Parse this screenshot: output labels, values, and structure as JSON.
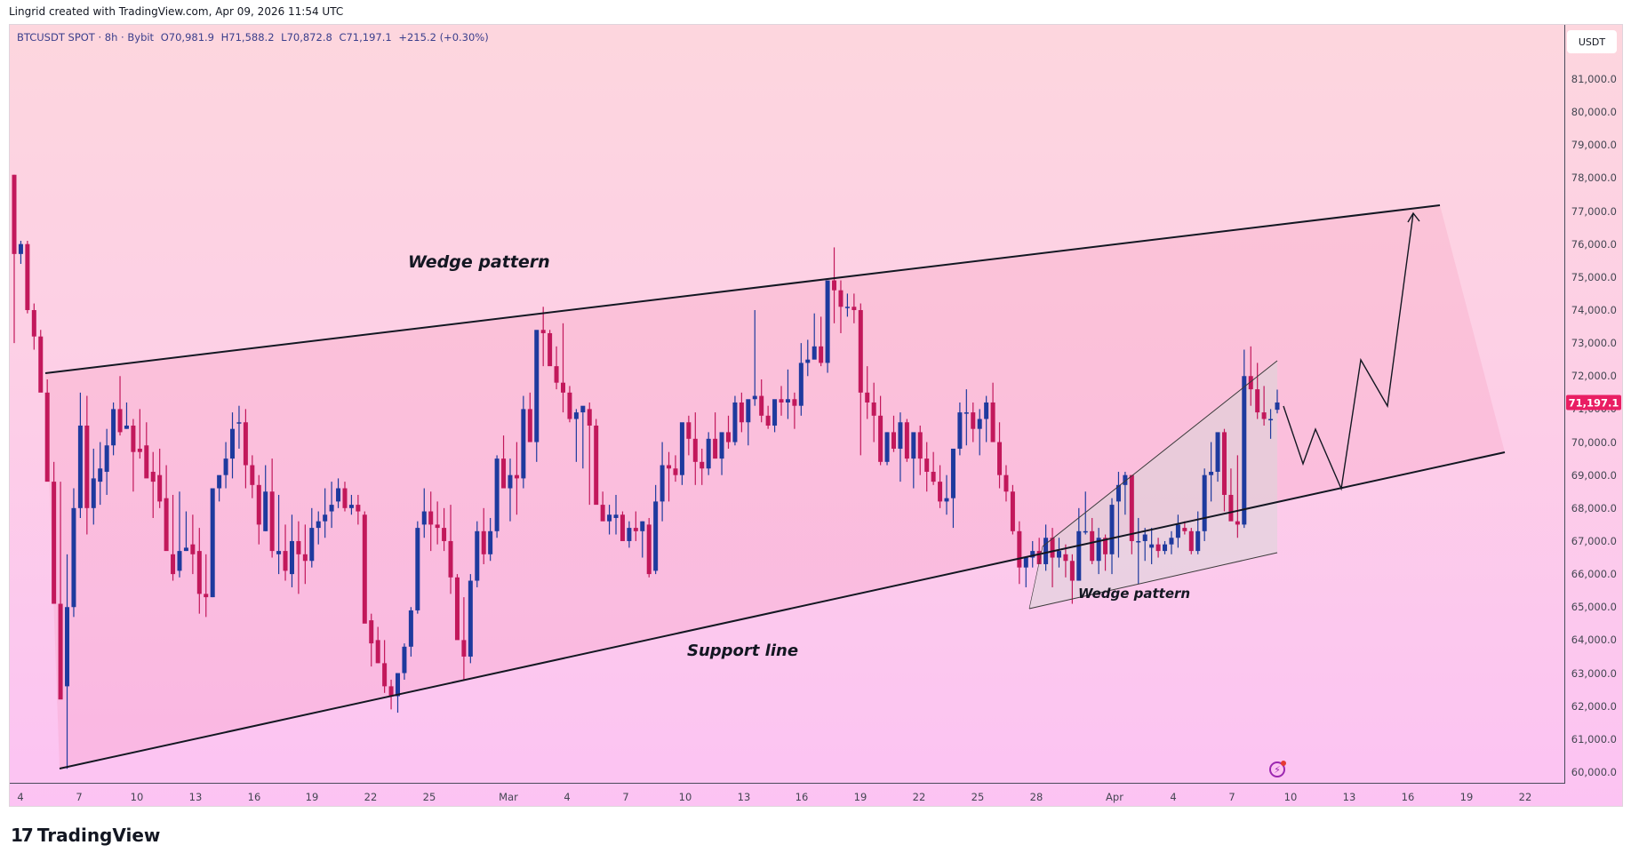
{
  "header": {
    "attribution": "Lingrid created with TradingView.com, Apr 09, 2026 11:54 UTC"
  },
  "legend": {
    "symbol": "BTCUSDT SPOT · 8h · Bybit",
    "open": "O70,981.9",
    "high": "H71,588.2",
    "low": "L70,872.8",
    "close": "C71,197.1",
    "change": "+215.2 (+0.30%)"
  },
  "price_axis": {
    "currency": "USDT",
    "labels": [
      "81,000.0",
      "80,000.0",
      "79,000.0",
      "78,000.0",
      "77,000.0",
      "76,000.0",
      "75,000.0",
      "74,000.0",
      "73,000.0",
      "72,000.0",
      "71,000.0",
      "70,000.0",
      "69,000.0",
      "68,000.0",
      "67,000.0",
      "66,000.0",
      "65,000.0",
      "64,000.0",
      "63,000.0",
      "62,000.0",
      "61,000.0",
      "60,000.0"
    ],
    "current_price": "71,197.1",
    "current_price_color": "#e91e63"
  },
  "time_axis": {
    "labels": [
      "4",
      "7",
      "10",
      "13",
      "16",
      "19",
      "22",
      "25",
      "Mar",
      "4",
      "7",
      "10",
      "13",
      "16",
      "19",
      "22",
      "25",
      "28",
      "Apr",
      "4",
      "7",
      "10",
      "13",
      "16",
      "19",
      "22"
    ]
  },
  "annotations": {
    "wedge_pattern_main": "Wedge pattern",
    "support_line": "Support line",
    "wedge_pattern_small": "Wedge pattern"
  },
  "colors": {
    "bullish": "#1e3a9e",
    "bearish": "#c2185b",
    "line": "#131722"
  },
  "footer": {
    "brand": "TradingView",
    "brand_mark": "17"
  },
  "chart_data": {
    "type": "candlestick",
    "title": "BTCUSDT SPOT · 8h · Bybit",
    "xlabel": "",
    "ylabel": "USDT",
    "ylim": [
      59700,
      81800
    ],
    "x_ticks": [
      "Feb 4",
      "7",
      "10",
      "13",
      "16",
      "19",
      "22",
      "25",
      "Mar",
      "4",
      "7",
      "10",
      "13",
      "16",
      "19",
      "22",
      "25",
      "28",
      "Apr",
      "4",
      "7",
      "10",
      "13",
      "16",
      "19",
      "22"
    ],
    "last": {
      "open": 70981.9,
      "high": 71588.2,
      "low": 70872.8,
      "close": 71197.1,
      "change": 215.2,
      "change_pct": 0.3
    },
    "ohlc_thousands": [
      [
        78.1,
        78.1,
        73.0,
        75.7
      ],
      [
        75.7,
        76.1,
        75.4,
        76.0
      ],
      [
        76.0,
        76.1,
        73.9,
        74.0
      ],
      [
        74.0,
        74.2,
        72.8,
        73.2
      ],
      [
        73.2,
        73.4,
        71.6,
        71.5
      ],
      [
        71.5,
        71.9,
        69.4,
        68.8
      ],
      [
        68.8,
        69.4,
        66.5,
        65.1
      ],
      [
        65.1,
        68.8,
        62.8,
        62.2
      ],
      [
        62.6,
        66.6,
        60.1,
        65.0
      ],
      [
        65.0,
        68.6,
        64.7,
        68.0
      ],
      [
        68.0,
        71.5,
        67.7,
        70.5
      ],
      [
        70.5,
        71.4,
        67.2,
        68.0
      ],
      [
        68.0,
        69.8,
        67.5,
        68.9
      ],
      [
        68.8,
        70.0,
        68.1,
        69.2
      ],
      [
        69.1,
        70.4,
        68.4,
        69.9
      ],
      [
        69.9,
        71.2,
        69.6,
        71.0
      ],
      [
        71.0,
        72.0,
        70.2,
        70.3
      ],
      [
        70.4,
        71.2,
        70.4,
        70.5
      ],
      [
        70.5,
        70.7,
        68.5,
        69.7
      ],
      [
        69.8,
        71.0,
        69.5,
        69.7
      ],
      [
        69.9,
        70.6,
        69.0,
        68.9
      ],
      [
        69.1,
        69.7,
        67.7,
        68.8
      ],
      [
        69.0,
        69.8,
        68.0,
        68.2
      ],
      [
        68.3,
        69.3,
        66.8,
        66.7
      ],
      [
        66.6,
        68.4,
        65.8,
        66.0
      ],
      [
        66.1,
        68.5,
        65.9,
        66.7
      ],
      [
        66.7,
        67.9,
        66.7,
        66.8
      ],
      [
        66.9,
        67.8,
        66.0,
        66.6
      ],
      [
        66.7,
        67.4,
        64.8,
        65.4
      ],
      [
        65.4,
        66.6,
        64.7,
        65.3
      ],
      [
        65.3,
        68.4,
        65.3,
        68.6
      ],
      [
        68.6,
        68.9,
        68.2,
        69.0
      ],
      [
        69.0,
        70.0,
        68.6,
        69.5
      ],
      [
        69.5,
        70.9,
        68.9,
        70.4
      ],
      [
        70.6,
        71.1,
        69.8,
        70.6
      ],
      [
        70.6,
        71.0,
        68.6,
        69.3
      ],
      [
        69.3,
        69.6,
        68.3,
        68.7
      ],
      [
        68.7,
        69.0,
        66.9,
        67.5
      ],
      [
        67.3,
        69.3,
        67.3,
        68.5
      ],
      [
        68.5,
        69.5,
        66.5,
        66.7
      ],
      [
        66.6,
        68.4,
        66.0,
        66.7
      ],
      [
        66.7,
        67.5,
        65.8,
        66.1
      ],
      [
        66.0,
        67.8,
        65.6,
        67.0
      ],
      [
        67.0,
        67.6,
        65.4,
        66.6
      ],
      [
        66.6,
        67.5,
        65.7,
        66.4
      ],
      [
        66.4,
        68.0,
        66.2,
        67.4
      ],
      [
        67.4,
        67.9,
        66.9,
        67.6
      ],
      [
        67.6,
        68.6,
        67.1,
        67.8
      ],
      [
        67.9,
        68.8,
        67.4,
        68.1
      ],
      [
        68.2,
        68.9,
        68.0,
        68.6
      ],
      [
        68.6,
        68.8,
        67.9,
        68.0
      ],
      [
        68.0,
        68.4,
        67.8,
        68.1
      ],
      [
        68.1,
        68.4,
        67.5,
        67.9
      ],
      [
        67.8,
        67.9,
        65.5,
        64.5
      ],
      [
        64.6,
        64.8,
        63.2,
        63.9
      ],
      [
        64.0,
        64.4,
        63.3,
        63.3
      ],
      [
        63.3,
        64.0,
        62.4,
        62.6
      ],
      [
        62.6,
        62.8,
        61.9,
        62.3
      ],
      [
        62.3,
        63.0,
        61.8,
        63.0
      ],
      [
        63.0,
        63.9,
        62.8,
        63.8
      ],
      [
        63.8,
        65.0,
        63.5,
        64.9
      ],
      [
        64.9,
        67.6,
        64.8,
        67.4
      ],
      [
        67.5,
        68.6,
        67.1,
        67.9
      ],
      [
        67.9,
        68.5,
        66.7,
        67.5
      ],
      [
        67.5,
        68.2,
        66.9,
        67.4
      ],
      [
        67.4,
        68.0,
        66.7,
        67.0
      ],
      [
        67.0,
        68.1,
        65.4,
        65.9
      ],
      [
        65.9,
        66.0,
        64.2,
        64.0
      ],
      [
        64.0,
        65.3,
        62.8,
        63.5
      ],
      [
        63.5,
        66.0,
        63.3,
        65.8
      ],
      [
        65.8,
        67.6,
        65.6,
        67.3
      ],
      [
        67.3,
        68.0,
        66.3,
        66.6
      ],
      [
        66.6,
        67.7,
        66.4,
        67.3
      ],
      [
        67.3,
        69.6,
        67.1,
        69.5
      ],
      [
        69.5,
        70.2,
        68.7,
        68.6
      ],
      [
        68.6,
        69.5,
        67.6,
        69.0
      ],
      [
        69.0,
        70.0,
        67.8,
        68.9
      ],
      [
        68.9,
        71.4,
        68.6,
        71.0
      ],
      [
        71.0,
        71.5,
        70.0,
        70.0
      ],
      [
        70.0,
        72.3,
        69.4,
        73.4
      ],
      [
        73.4,
        74.1,
        72.3,
        73.3
      ],
      [
        73.3,
        73.4,
        72.4,
        72.3
      ],
      [
        72.3,
        72.9,
        71.6,
        71.8
      ],
      [
        71.8,
        73.6,
        70.9,
        71.5
      ],
      [
        71.5,
        71.7,
        70.6,
        70.7
      ],
      [
        70.7,
        71.0,
        69.4,
        70.9
      ],
      [
        70.9,
        70.9,
        69.2,
        71.1
      ],
      [
        71.0,
        71.2,
        68.1,
        70.5
      ],
      [
        70.5,
        70.7,
        68.2,
        68.1
      ],
      [
        68.1,
        68.5,
        67.7,
        67.6
      ],
      [
        67.6,
        68.1,
        67.2,
        67.8
      ],
      [
        67.7,
        68.4,
        67.2,
        67.8
      ],
      [
        67.8,
        67.9,
        67.2,
        67.0
      ],
      [
        67.0,
        67.6,
        66.8,
        67.4
      ],
      [
        67.4,
        67.9,
        67.0,
        67.3
      ],
      [
        67.3,
        67.6,
        66.5,
        67.6
      ],
      [
        67.5,
        67.7,
        65.9,
        66.0
      ],
      [
        66.1,
        68.7,
        66.0,
        68.2
      ],
      [
        68.2,
        70.0,
        67.6,
        69.3
      ],
      [
        69.3,
        69.7,
        68.2,
        69.2
      ],
      [
        69.2,
        69.6,
        68.8,
        69.0
      ],
      [
        69.0,
        70.4,
        68.7,
        70.6
      ],
      [
        70.6,
        70.8,
        69.6,
        70.1
      ],
      [
        70.1,
        70.9,
        68.7,
        69.4
      ],
      [
        69.4,
        69.8,
        68.7,
        69.2
      ],
      [
        69.2,
        70.3,
        69.0,
        70.1
      ],
      [
        70.1,
        70.9,
        69.5,
        69.5
      ],
      [
        69.5,
        69.9,
        69.0,
        70.3
      ],
      [
        70.3,
        70.8,
        69.8,
        70.0
      ],
      [
        70.0,
        71.4,
        69.9,
        71.2
      ],
      [
        71.2,
        71.5,
        70.3,
        70.6
      ],
      [
        70.6,
        71.1,
        69.9,
        71.3
      ],
      [
        71.3,
        74.0,
        71.1,
        71.4
      ],
      [
        71.4,
        71.9,
        70.6,
        70.8
      ],
      [
        70.8,
        71.1,
        70.4,
        70.5
      ],
      [
        70.5,
        70.9,
        70.3,
        71.3
      ],
      [
        71.3,
        71.7,
        70.8,
        71.2
      ],
      [
        71.2,
        72.2,
        70.7,
        71.3
      ],
      [
        71.3,
        71.5,
        70.4,
        71.1
      ],
      [
        71.1,
        73.0,
        70.8,
        72.4
      ],
      [
        72.4,
        73.1,
        72.0,
        72.5
      ],
      [
        72.5,
        73.9,
        72.6,
        72.9
      ],
      [
        72.9,
        73.8,
        72.3,
        72.4
      ],
      [
        72.4,
        74.8,
        72.1,
        74.9
      ],
      [
        74.9,
        75.9,
        73.6,
        74.6
      ],
      [
        74.6,
        74.9,
        73.3,
        74.1
      ],
      [
        74.1,
        74.5,
        73.8,
        74.1
      ],
      [
        74.1,
        74.5,
        73.6,
        74.0
      ],
      [
        74.0,
        74.2,
        69.6,
        71.5
      ],
      [
        71.5,
        72.3,
        70.7,
        71.2
      ],
      [
        71.2,
        71.8,
        70.0,
        70.8
      ],
      [
        70.8,
        71.4,
        69.3,
        69.4
      ],
      [
        69.4,
        70.3,
        69.3,
        70.3
      ],
      [
        70.3,
        70.8,
        69.7,
        69.8
      ],
      [
        69.8,
        70.9,
        68.8,
        70.6
      ],
      [
        70.6,
        70.7,
        69.4,
        69.5
      ],
      [
        69.5,
        69.9,
        68.6,
        70.3
      ],
      [
        70.3,
        70.5,
        69.0,
        69.5
      ],
      [
        69.5,
        70.0,
        68.5,
        69.1
      ],
      [
        69.1,
        69.7,
        68.7,
        68.8
      ],
      [
        68.8,
        69.3,
        68.0,
        68.2
      ],
      [
        68.2,
        69.0,
        67.8,
        68.3
      ],
      [
        68.3,
        69.6,
        67.4,
        69.8
      ],
      [
        69.8,
        71.2,
        69.6,
        70.9
      ],
      [
        70.9,
        71.6,
        69.9,
        70.9
      ],
      [
        70.9,
        71.2,
        70.0,
        70.4
      ],
      [
        70.4,
        71.0,
        69.6,
        70.7
      ],
      [
        70.7,
        71.4,
        70.0,
        71.2
      ],
      [
        71.2,
        71.8,
        70.6,
        70.0
      ],
      [
        70.0,
        70.6,
        68.6,
        69.0
      ],
      [
        69.0,
        69.3,
        68.2,
        68.5
      ],
      [
        68.5,
        68.7,
        67.2,
        67.3
      ],
      [
        67.3,
        67.6,
        65.7,
        66.2
      ],
      [
        66.2,
        66.5,
        65.6,
        66.5
      ],
      [
        66.5,
        67.0,
        66.2,
        66.7
      ],
      [
        66.7,
        67.1,
        66.3,
        66.3
      ],
      [
        66.3,
        67.5,
        66.1,
        67.1
      ],
      [
        67.1,
        67.4,
        65.6,
        66.5
      ],
      [
        66.5,
        67.1,
        66.2,
        66.7
      ],
      [
        66.6,
        66.9,
        65.9,
        66.4
      ],
      [
        66.4,
        66.6,
        65.1,
        65.8
      ],
      [
        65.8,
        68.0,
        65.8,
        67.3
      ],
      [
        67.3,
        68.5,
        67.2,
        67.3
      ],
      [
        67.3,
        67.7,
        66.3,
        66.4
      ],
      [
        66.4,
        67.4,
        66.0,
        67.1
      ],
      [
        67.1,
        67.2,
        66.1,
        66.6
      ],
      [
        66.6,
        68.3,
        66.0,
        68.1
      ],
      [
        68.2,
        69.1,
        66.5,
        68.7
      ],
      [
        68.7,
        69.1,
        67.8,
        69.0
      ],
      [
        69.0,
        69.0,
        66.6,
        67.0
      ],
      [
        67.0,
        67.7,
        65.7,
        67.0
      ],
      [
        67.0,
        67.4,
        66.4,
        67.2
      ],
      [
        66.8,
        67.4,
        66.3,
        66.9
      ],
      [
        66.9,
        67.1,
        66.5,
        66.7
      ],
      [
        66.7,
        67.0,
        66.6,
        66.9
      ],
      [
        66.9,
        67.3,
        66.6,
        67.1
      ],
      [
        67.1,
        67.8,
        66.8,
        67.5
      ],
      [
        67.4,
        67.6,
        67.2,
        67.3
      ],
      [
        67.3,
        67.4,
        66.6,
        66.7
      ],
      [
        66.7,
        67.9,
        66.6,
        67.3
      ],
      [
        67.3,
        69.2,
        67.0,
        69.0
      ],
      [
        69.0,
        70.0,
        68.2,
        69.1
      ],
      [
        69.1,
        69.9,
        68.8,
        70.3
      ],
      [
        70.3,
        70.4,
        67.9,
        68.4
      ],
      [
        68.4,
        69.2,
        67.9,
        67.6
      ],
      [
        67.6,
        69.6,
        67.1,
        67.5
      ],
      [
        67.5,
        72.8,
        67.4,
        72.0
      ],
      [
        72.0,
        72.9,
        71.1,
        71.6
      ],
      [
        71.6,
        72.4,
        70.7,
        70.9
      ],
      [
        70.9,
        71.7,
        70.5,
        70.7
      ],
      [
        70.7,
        71.0,
        70.1,
        70.7
      ],
      [
        70.98,
        71.59,
        70.87,
        71.2
      ]
    ]
  }
}
